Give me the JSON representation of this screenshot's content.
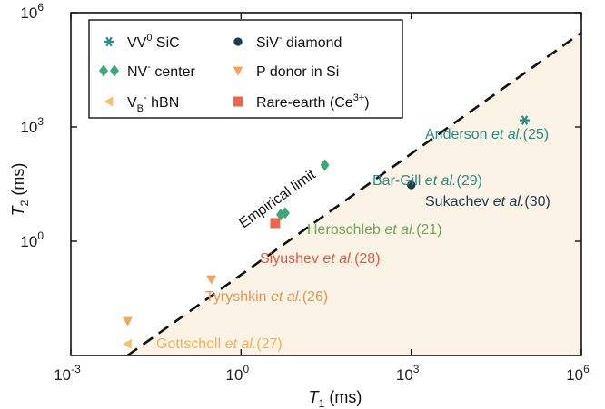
{
  "chart_data": {
    "type": "scatter",
    "xlabel": "T₁ (ms)",
    "ylabel": "T₂ (ms)",
    "xscale": "log",
    "yscale": "log",
    "xlim": [
      0.001,
      1000000
    ],
    "ylim": [
      0.001,
      1000000
    ],
    "x_ticks": [
      {
        "value": 0.001,
        "base": "10",
        "exp": "-3"
      },
      {
        "value": 1,
        "base": "10",
        "exp": "0"
      },
      {
        "value": 1000,
        "base": "10",
        "exp": "3"
      },
      {
        "value": 1000000,
        "base": "10",
        "exp": "6"
      }
    ],
    "y_ticks": [
      {
        "value": 1,
        "base": "10",
        "exp": "0"
      },
      {
        "value": 1000,
        "base": "10",
        "exp": "3"
      },
      {
        "value": 1000000,
        "base": "10",
        "exp": "6"
      }
    ],
    "limit_line": {
      "label": "Empirical limit",
      "style": "dashed",
      "color": "#111111",
      "region_fill": "#fbf3e6"
    },
    "series": [
      {
        "name_main": "VV",
        "name_sup": "0",
        "name_rest": "  SiC",
        "marker": "star",
        "color": "#2a8c86",
        "points": [
          {
            "x": 100000,
            "y": 1500
          }
        ],
        "annotations": [
          {
            "author": "Anderson",
            "cite": "(25)",
            "color": "#2a8c86"
          }
        ]
      },
      {
        "name_main": "SiV",
        "name_sup": "-",
        "name_rest": "  diamond",
        "marker": "circle",
        "color": "#1f3a4a",
        "points": [
          {
            "x": 1000,
            "y": 30
          }
        ],
        "annotations": [
          {
            "author": "Sukachev",
            "cite": "(30)",
            "color": "#1f3a4a"
          }
        ]
      },
      {
        "name_main": "NV",
        "name_sup": "-",
        "name_rest": " center",
        "marker": "diamond",
        "color": "#3aa877",
        "points": [
          {
            "x": 30,
            "y": 100
          },
          {
            "x": 5,
            "y": 5
          },
          {
            "x": 6,
            "y": 5.5
          }
        ],
        "annotations": [
          {
            "author": "Bar-Gill",
            "cite": "(29)",
            "color": "#2a8c86"
          },
          {
            "author": "Herbschleb",
            "cite": "(21)",
            "color": "#6aa84f"
          }
        ]
      },
      {
        "name_main": "P donor in Si",
        "name_sup": "",
        "name_rest": "",
        "marker": "triangle-down",
        "color": "#f5a25d",
        "points": [
          {
            "x": 0.3,
            "y": 0.1
          },
          {
            "x": 0.01,
            "y": 0.008
          }
        ],
        "annotations": [
          {
            "author": "Tyryshkin",
            "cite": "(26)",
            "color": "#e8954a"
          }
        ]
      },
      {
        "name_main": "V",
        "name_sub": "B",
        "name_sup": "-",
        "name_rest": "  hBN",
        "marker": "triangle-left",
        "color": "#f3c26b",
        "points": [
          {
            "x": 0.01,
            "y": 0.002
          }
        ],
        "annotations": [
          {
            "author": "Gottscholl",
            "cite": "(27)",
            "color": "#f0b44c"
          }
        ]
      },
      {
        "name_main": "Rare-earth (Ce",
        "name_sup": "3+",
        "name_rest": ")",
        "marker": "square",
        "color": "#e8674f",
        "points": [
          {
            "x": 4,
            "y": 3
          }
        ],
        "annotations": [
          {
            "author": "Siyushev",
            "cite": "(28)",
            "color": "#e05a40"
          }
        ]
      }
    ]
  }
}
